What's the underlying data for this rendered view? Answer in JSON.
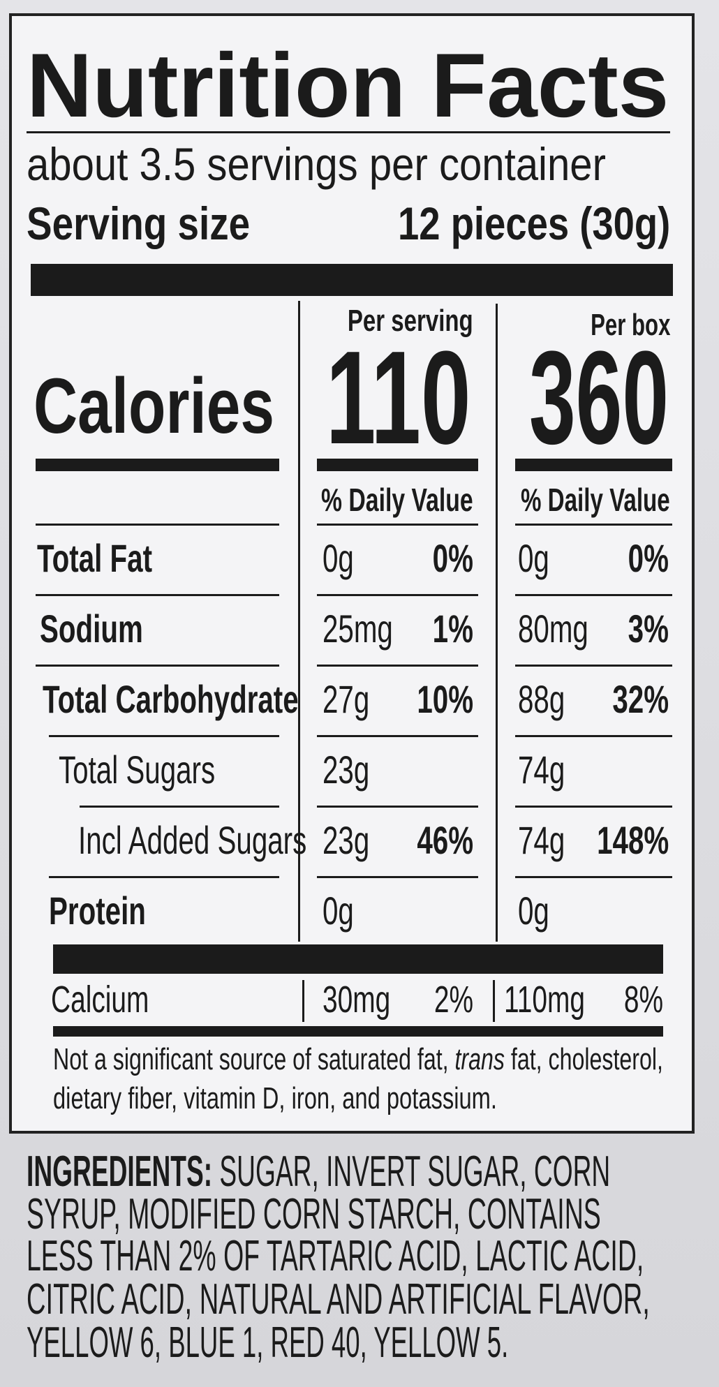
{
  "title": "Nutrition Facts",
  "servings_per_container": "about 3.5 servings per container",
  "serving_size": {
    "label": "Serving size",
    "value": "12 pieces (30g)"
  },
  "calories": {
    "label": "Calories",
    "per_serving_header": "Per serving",
    "per_serving": "110",
    "per_box_header": "Per box",
    "per_box": "360"
  },
  "daily_value_headers": [
    "% Daily Value",
    "% Daily Value"
  ],
  "rows": [
    {
      "name": "Total Fat",
      "serving_amount": "0g",
      "serving_dv": "0%",
      "box_amount": "0g",
      "box_dv": "0%"
    },
    {
      "name": "Sodium",
      "serving_amount": "25mg",
      "serving_dv": "1%",
      "box_amount": "80mg",
      "box_dv": "3%"
    },
    {
      "name": "Total Carbohydrate",
      "serving_amount": "27g",
      "serving_dv": "10%",
      "box_amount": "88g",
      "box_dv": "32%"
    },
    {
      "name": "Total Sugars",
      "serving_amount": "23g",
      "box_amount": "74g"
    },
    {
      "name": "Incl Added Sugars",
      "serving_amount": "23g",
      "serving_dv": "46%",
      "box_amount": "74g",
      "box_dv": "148%"
    },
    {
      "name": "Protein",
      "serving_amount": "0g",
      "box_amount": "0g"
    }
  ],
  "calcium": {
    "name": "Calcium",
    "serving_amount": "30mg",
    "serving_dv": "2%",
    "box_amount": "110mg",
    "box_dv": "8%"
  },
  "footnote": {
    "lines": [
      [
        "Not a significant source of saturated fat, ",
        "trans",
        " fat, cholesterol,"
      ],
      [
        "dietary fiber, vitamin D, iron, and potassium."
      ]
    ]
  },
  "ingredients": {
    "label": "INGREDIENTS:",
    "lines": [
      " SUGAR, INVERT SUGAR, CORN",
      "SYRUP, MODIFIED CORN STARCH, CONTAINS",
      "LESS THAN 2% OF TARTARIC ACID, LACTIC ACID,",
      "CITRIC ACID, NATURAL AND ARTIFICIAL FLAVOR,",
      "YELLOW 6, BLUE 1, RED 40, YELLOW 5."
    ]
  }
}
